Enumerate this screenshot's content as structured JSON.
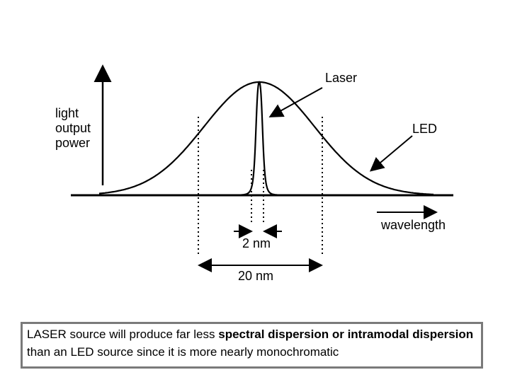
{
  "diagram": {
    "y_label_lines": [
      "light",
      "output",
      "power"
    ],
    "x_label": "wavelength",
    "laser_label": "Laser",
    "led_label": "LED",
    "narrow_width_label": "2 nm",
    "wide_width_label": "20 nm"
  },
  "caption": {
    "part1": "LASER source will produce far less ",
    "bold1": "spectral dispersion or intramodal dispersion",
    "part2": " than an LED source since it is more nearly monochromatic"
  },
  "colors": {
    "line": "#000000",
    "caption_border": "#7a7a7a"
  }
}
